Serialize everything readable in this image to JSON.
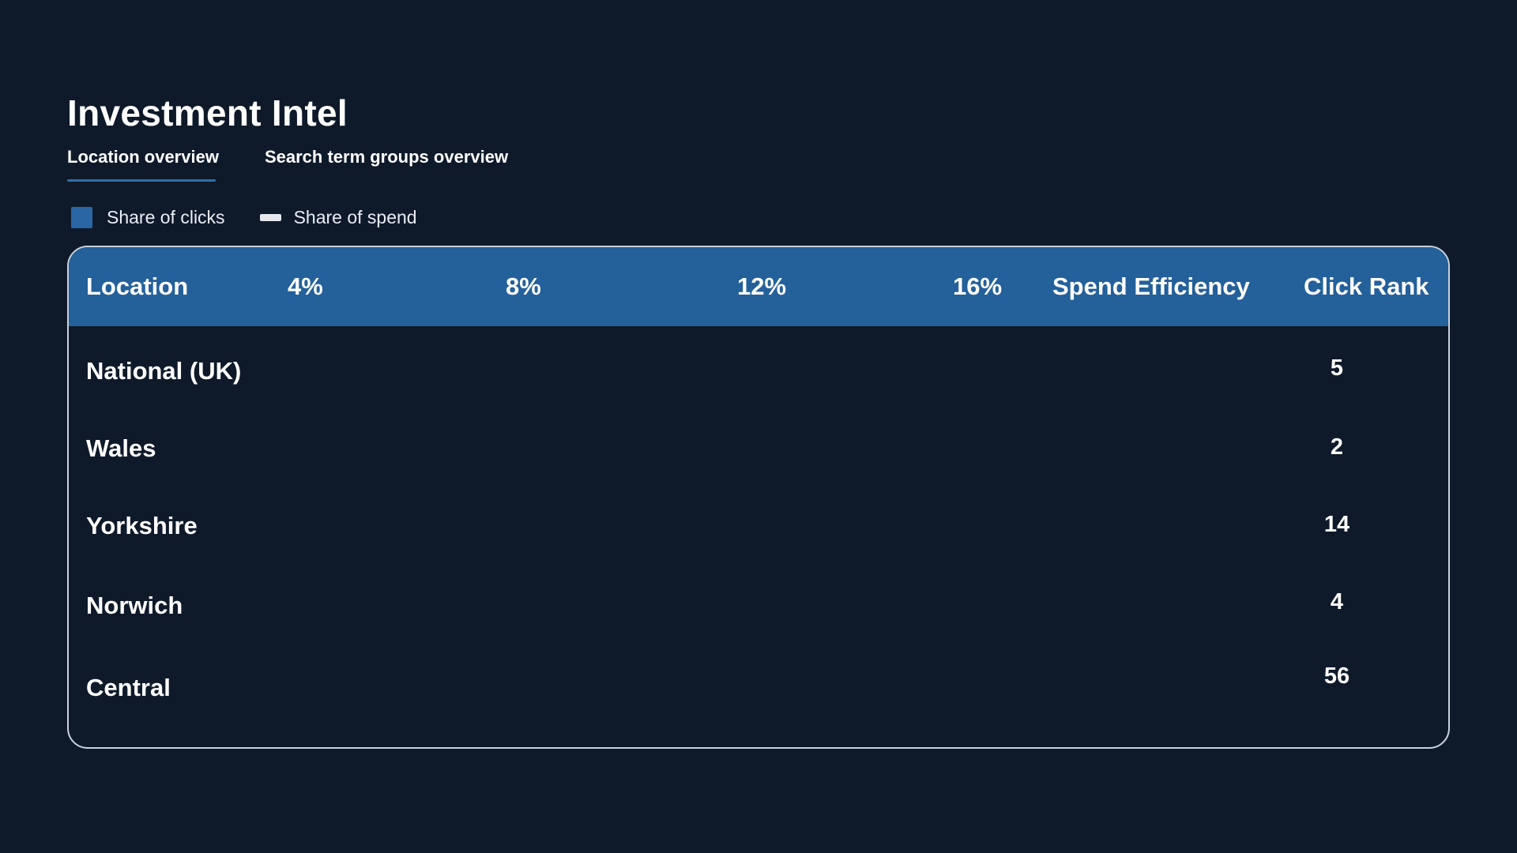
{
  "app": {
    "title": "Investment Intel"
  },
  "tabs": [
    {
      "label": "Location overview",
      "active": true
    },
    {
      "label": "Search term groups overview",
      "active": false
    }
  ],
  "legend": {
    "share_of_clicks": {
      "label": "Share of clicks",
      "color": "#2a66a4"
    },
    "share_of_spend": {
      "label": "Share of spend",
      "color": "#e4e8ee"
    }
  },
  "colors": {
    "background": "#0e1a2a",
    "header_background": "#24609a",
    "accent": "#2f6ea8",
    "card_border": "#c9d2de"
  },
  "table": {
    "headers": {
      "location": "Location",
      "tick_4": "4%",
      "tick_8": "8%",
      "tick_12": "12%",
      "tick_16": "16%",
      "spend_efficiency": "Spend Efficiency",
      "click_rank": "Click Rank"
    },
    "rows": [
      {
        "location": "National (UK)",
        "click_rank": "5"
      },
      {
        "location": "Wales",
        "click_rank": "2"
      },
      {
        "location": "Yorkshire",
        "click_rank": "14"
      },
      {
        "location": "Norwich",
        "click_rank": "4"
      },
      {
        "location": "Central",
        "click_rank": "56"
      }
    ]
  }
}
